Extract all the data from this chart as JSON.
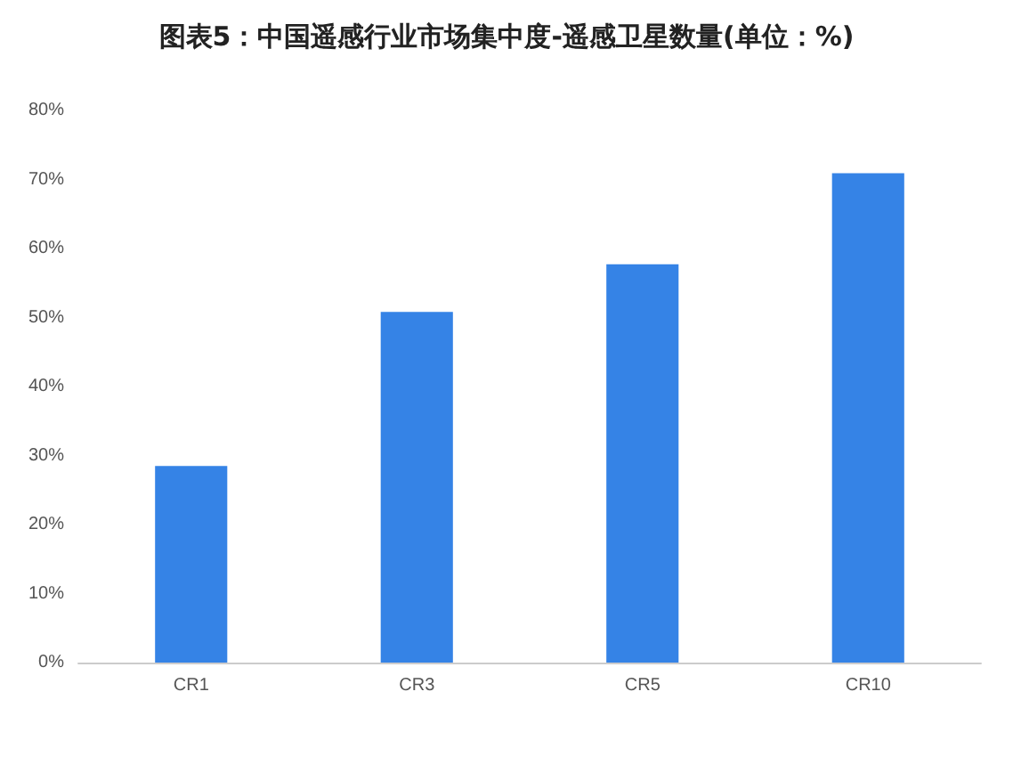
{
  "chart_data": {
    "type": "bar",
    "title": "图表5：中国遥感行业市场集中度-遥感卫星数量(单位：%)",
    "categories": [
      "CR1",
      "CR3",
      "CR5",
      "CR10"
    ],
    "values": [
      28.5,
      50.8,
      57.7,
      70.9
    ],
    "color": "#3583e6",
    "ylim": [
      0,
      80
    ],
    "yticks": [
      {
        "value": 0,
        "label": "0%"
      },
      {
        "value": 10,
        "label": "10%"
      },
      {
        "value": 20,
        "label": "20%"
      },
      {
        "value": 30,
        "label": "30%"
      },
      {
        "value": 40,
        "label": "40%"
      },
      {
        "value": 50,
        "label": "50%"
      },
      {
        "value": 60,
        "label": "60%"
      },
      {
        "value": 70,
        "label": "70%"
      },
      {
        "value": 80,
        "label": "80%"
      }
    ],
    "grid": false
  }
}
